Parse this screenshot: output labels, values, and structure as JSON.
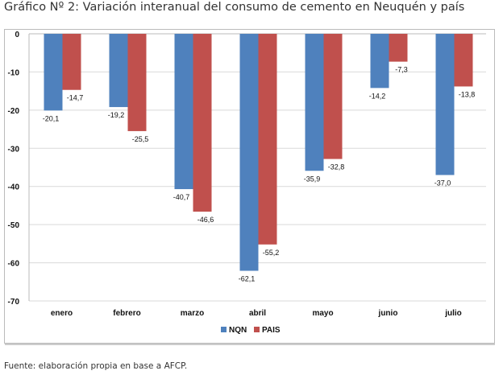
{
  "chart_data": {
    "type": "bar",
    "title": "Gráfico Nº 2: Variación interanual del consumo de cemento en Neuquén y país",
    "categories": [
      "enero",
      "febrero",
      "marzo",
      "abril",
      "mayo",
      "junio",
      "julio"
    ],
    "series": [
      {
        "name": "NQN",
        "color": "#4f81bd",
        "values": [
          -20.1,
          -19.2,
          -40.7,
          -62.1,
          -35.9,
          -14.2,
          -37.0
        ],
        "labels": [
          "-20,1",
          "-19,2",
          "-40,7",
          "-62,1",
          "-35,9",
          "-14,2",
          "-37,0"
        ]
      },
      {
        "name": "PAIS",
        "color": "#c0504d",
        "values": [
          -14.7,
          -25.5,
          -46.6,
          -55.2,
          -32.8,
          -7.3,
          -13.8
        ],
        "labels": [
          "-14,7",
          "-25,5",
          "-46,6",
          "-55,2",
          "-32,8",
          "-7,3",
          "-13,8"
        ]
      }
    ],
    "yticks": [
      "0",
      "-10",
      "-20",
      "-30",
      "-40",
      "-50",
      "-60",
      "-70"
    ],
    "ytick_values": [
      0,
      -10,
      -20,
      -30,
      -40,
      -50,
      -60,
      -70
    ],
    "ylim": [
      -70,
      0
    ],
    "xlabel": "",
    "ylabel": "",
    "grid": true,
    "legend": "bottom"
  },
  "footer": "Fuente: elaboración propia en base a AFCP."
}
